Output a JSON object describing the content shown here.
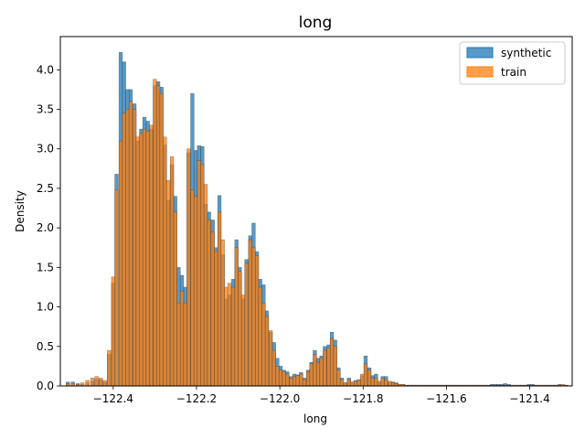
{
  "chart_data": {
    "type": "bar",
    "title": "long",
    "xlabel": "long",
    "ylabel": "Density",
    "xlim": [
      -122.527,
      -121.298
    ],
    "ylim": [
      0,
      4.42
    ],
    "xticks": [
      -122.4,
      -122.2,
      -122.0,
      -121.8,
      -121.6,
      -121.4
    ],
    "xtick_labels": [
      "−122.4",
      "−122.2",
      "−122.0",
      "−121.8",
      "−121.6",
      "−121.4"
    ],
    "yticks": [
      0.0,
      0.5,
      1.0,
      1.5,
      2.0,
      2.5,
      3.0,
      3.5,
      4.0
    ],
    "ytick_labels": [
      "0.0",
      "0.5",
      "1.0",
      "1.5",
      "2.0",
      "2.5",
      "3.0",
      "3.5",
      "4.0"
    ],
    "legend": {
      "placement": "top-right",
      "entries": [
        "synthetic",
        "train"
      ]
    },
    "grid": false,
    "series": [
      {
        "name": "synthetic",
        "color": "#1f77b4",
        "bins": [
          [
            -122.509,
            0.05
          ],
          [
            -122.497,
            0.05
          ],
          [
            -122.485,
            0.03
          ],
          [
            -122.474,
            0.02
          ],
          [
            -122.462,
            0.04
          ],
          [
            -122.45,
            0.06
          ],
          [
            -122.44,
            0.09
          ],
          [
            -122.43,
            0.08
          ],
          [
            -122.42,
            0.05
          ],
          [
            -122.41,
            0.4
          ],
          [
            -122.4,
            1.3
          ],
          [
            -122.392,
            2.68
          ],
          [
            -122.382,
            4.22
          ],
          [
            -122.374,
            4.1
          ],
          [
            -122.366,
            3.75
          ],
          [
            -122.358,
            3.75
          ],
          [
            -122.349,
            3.57
          ],
          [
            -122.341,
            3.1
          ],
          [
            -122.333,
            3.25
          ],
          [
            -122.325,
            3.4
          ],
          [
            -122.317,
            3.35
          ],
          [
            -122.309,
            3.25
          ],
          [
            -122.3,
            3.8
          ],
          [
            -122.292,
            3.85
          ],
          [
            -122.284,
            3.78
          ],
          [
            -122.276,
            3.05
          ],
          [
            -122.268,
            2.35
          ],
          [
            -122.259,
            2.8
          ],
          [
            -122.251,
            2.4
          ],
          [
            -122.243,
            1.5
          ],
          [
            -122.235,
            1.4
          ],
          [
            -122.227,
            1.25
          ],
          [
            -122.219,
            2.95
          ],
          [
            -122.21,
            3.7
          ],
          [
            -122.202,
            2.98
          ],
          [
            -122.194,
            3.04
          ],
          [
            -122.186,
            3.03
          ],
          [
            -122.178,
            2.3
          ],
          [
            -122.17,
            2.2
          ],
          [
            -122.161,
            2.1
          ],
          [
            -122.153,
            1.75
          ],
          [
            -122.145,
            2.41
          ],
          [
            -122.137,
            1.66
          ],
          [
            -122.129,
            1.1
          ],
          [
            -122.121,
            1.15
          ],
          [
            -122.112,
            1.35
          ],
          [
            -122.104,
            1.85
          ],
          [
            -122.096,
            1.5
          ],
          [
            -122.088,
            1.1
          ],
          [
            -122.08,
            1.6
          ],
          [
            -122.071,
            1.9
          ],
          [
            -122.063,
            2.06
          ],
          [
            -122.055,
            1.7
          ],
          [
            -122.047,
            1.35
          ],
          [
            -122.039,
            1.28
          ],
          [
            -122.031,
            0.95
          ],
          [
            -122.022,
            0.68
          ],
          [
            -122.014,
            0.55
          ],
          [
            -122.006,
            0.35
          ],
          [
            -121.998,
            0.25
          ],
          [
            -121.99,
            0.2
          ],
          [
            -121.982,
            0.18
          ],
          [
            -121.973,
            0.12
          ],
          [
            -121.965,
            0.15
          ],
          [
            -121.957,
            0.14
          ],
          [
            -121.949,
            0.17
          ],
          [
            -121.941,
            0.1
          ],
          [
            -121.932,
            0.2
          ],
          [
            -121.924,
            0.3
          ],
          [
            -121.916,
            0.45
          ],
          [
            -121.908,
            0.35
          ],
          [
            -121.9,
            0.38
          ],
          [
            -121.892,
            0.5
          ],
          [
            -121.883,
            0.52
          ],
          [
            -121.875,
            0.68
          ],
          [
            -121.867,
            0.58
          ],
          [
            -121.859,
            0.23
          ],
          [
            -121.851,
            0.1
          ],
          [
            -121.843,
            0.04
          ],
          [
            -121.834,
            0.1
          ],
          [
            -121.826,
            0.05
          ],
          [
            -121.818,
            0.07
          ],
          [
            -121.81,
            0.08
          ],
          [
            -121.802,
            0.13
          ],
          [
            -121.794,
            0.38
          ],
          [
            -121.785,
            0.23
          ],
          [
            -121.777,
            0.13
          ],
          [
            -121.769,
            0.15
          ],
          [
            -121.761,
            0.05
          ],
          [
            -121.753,
            0.12
          ],
          [
            -121.745,
            0.12
          ],
          [
            -121.736,
            0.05
          ],
          [
            -121.728,
            0.05
          ],
          [
            -121.72,
            0.04
          ],
          [
            -121.712,
            0.02
          ],
          [
            -121.704,
            0.02
          ],
          [
            -121.695,
            0.01
          ],
          [
            -121.687,
            0.01
          ],
          [
            -121.679,
            0.01
          ],
          [
            -121.671,
            0.01
          ],
          [
            -121.663,
            0.01
          ],
          [
            -121.655,
            0.01
          ],
          [
            -121.646,
            0.01
          ],
          [
            -121.638,
            0.01
          ],
          [
            -121.63,
            0.01
          ],
          [
            -121.622,
            0.01
          ],
          [
            -121.614,
            0.01
          ],
          [
            -121.605,
            0.01
          ],
          [
            -121.597,
            0.01
          ],
          [
            -121.589,
            0.01
          ],
          [
            -121.581,
            0.01
          ],
          [
            -121.573,
            0.01
          ],
          [
            -121.565,
            0.01
          ],
          [
            -121.556,
            0.01
          ],
          [
            -121.548,
            0.01
          ],
          [
            -121.54,
            0.01
          ],
          [
            -121.532,
            0.01
          ],
          [
            -121.524,
            0.01
          ],
          [
            -121.516,
            0.01
          ],
          [
            -121.508,
            0.01
          ],
          [
            -121.499,
            0.01
          ],
          [
            -121.491,
            0.02
          ],
          [
            -121.483,
            0.02
          ],
          [
            -121.475,
            0.02
          ],
          [
            -121.467,
            0.02
          ],
          [
            -121.459,
            0.03
          ],
          [
            -121.45,
            0.02
          ],
          [
            -121.442,
            0.01
          ],
          [
            -121.434,
            0.01
          ],
          [
            -121.426,
            0.01
          ],
          [
            -121.418,
            0.01
          ],
          [
            -121.41,
            0.01
          ],
          [
            -121.402,
            0.02
          ],
          [
            -121.393,
            0.02
          ],
          [
            -121.385,
            0.01
          ],
          [
            -121.377,
            0.01
          ],
          [
            -121.369,
            0.01
          ],
          [
            -121.361,
            0.01
          ],
          [
            -121.353,
            0.01
          ],
          [
            -121.344,
            0.01
          ],
          [
            -121.336,
            0.01
          ],
          [
            -121.328,
            0.02
          ],
          [
            -121.32,
            0.01
          ],
          [
            -121.312,
            0.01
          ]
        ]
      },
      {
        "name": "train",
        "color": "#ff7f0e",
        "bins": [
          [
            -122.509,
            0.03
          ],
          [
            -122.497,
            0.03
          ],
          [
            -122.485,
            0.02
          ],
          [
            -122.474,
            0.04
          ],
          [
            -122.462,
            0.07
          ],
          [
            -122.45,
            0.1
          ],
          [
            -122.44,
            0.12
          ],
          [
            -122.43,
            0.1
          ],
          [
            -122.42,
            0.07
          ],
          [
            -122.41,
            0.45
          ],
          [
            -122.4,
            1.38
          ],
          [
            -122.392,
            2.48
          ],
          [
            -122.382,
            3.1
          ],
          [
            -122.374,
            3.45
          ],
          [
            -122.366,
            3.5
          ],
          [
            -122.358,
            3.6
          ],
          [
            -122.349,
            3.5
          ],
          [
            -122.341,
            3.15
          ],
          [
            -122.333,
            3.2
          ],
          [
            -122.325,
            3.25
          ],
          [
            -122.317,
            3.22
          ],
          [
            -122.309,
            3.3
          ],
          [
            -122.3,
            3.88
          ],
          [
            -122.292,
            3.8
          ],
          [
            -122.284,
            3.7
          ],
          [
            -122.276,
            3.15
          ],
          [
            -122.268,
            2.6
          ],
          [
            -122.259,
            2.9
          ],
          [
            -122.251,
            2.2
          ],
          [
            -122.243,
            1.05
          ],
          [
            -122.235,
            1.2
          ],
          [
            -122.227,
            1.05
          ],
          [
            -122.219,
            3.0
          ],
          [
            -122.21,
            2.48
          ],
          [
            -122.202,
            2.4
          ],
          [
            -122.194,
            2.85
          ],
          [
            -122.186,
            2.8
          ],
          [
            -122.178,
            2.55
          ],
          [
            -122.17,
            2.1
          ],
          [
            -122.161,
            1.95
          ],
          [
            -122.153,
            1.7
          ],
          [
            -122.145,
            2.2
          ],
          [
            -122.137,
            1.85
          ],
          [
            -122.129,
            1.25
          ],
          [
            -122.121,
            1.3
          ],
          [
            -122.112,
            1.25
          ],
          [
            -122.104,
            1.75
          ],
          [
            -122.096,
            1.45
          ],
          [
            -122.088,
            1.15
          ],
          [
            -122.08,
            1.55
          ],
          [
            -122.071,
            1.85
          ],
          [
            -122.063,
            1.75
          ],
          [
            -122.055,
            1.65
          ],
          [
            -122.047,
            1.25
          ],
          [
            -122.039,
            1.05
          ],
          [
            -122.031,
            0.88
          ],
          [
            -122.022,
            0.7
          ],
          [
            -122.014,
            0.45
          ],
          [
            -122.006,
            0.25
          ],
          [
            -121.998,
            0.2
          ],
          [
            -121.99,
            0.18
          ],
          [
            -121.982,
            0.15
          ],
          [
            -121.973,
            0.1
          ],
          [
            -121.965,
            0.12
          ],
          [
            -121.957,
            0.13
          ],
          [
            -121.949,
            0.15
          ],
          [
            -121.941,
            0.08
          ],
          [
            -121.932,
            0.18
          ],
          [
            -121.924,
            0.28
          ],
          [
            -121.916,
            0.4
          ],
          [
            -121.908,
            0.3
          ],
          [
            -121.9,
            0.35
          ],
          [
            -121.892,
            0.45
          ],
          [
            -121.883,
            0.48
          ],
          [
            -121.875,
            0.6
          ],
          [
            -121.867,
            0.5
          ],
          [
            -121.859,
            0.2
          ],
          [
            -121.851,
            0.08
          ],
          [
            -121.843,
            0.04
          ],
          [
            -121.834,
            0.08
          ],
          [
            -121.826,
            0.05
          ],
          [
            -121.818,
            0.06
          ],
          [
            -121.81,
            0.07
          ],
          [
            -121.802,
            0.15
          ],
          [
            -121.794,
            0.28
          ],
          [
            -121.785,
            0.2
          ],
          [
            -121.777,
            0.1
          ],
          [
            -121.769,
            0.1
          ],
          [
            -121.761,
            0.06
          ],
          [
            -121.753,
            0.1
          ],
          [
            -121.745,
            0.08
          ],
          [
            -121.736,
            0.06
          ],
          [
            -121.728,
            0.04
          ],
          [
            -121.72,
            0.03
          ],
          [
            -121.712,
            0.02
          ],
          [
            -121.704,
            0.02
          ],
          [
            -121.695,
            0.01
          ],
          [
            -121.687,
            0.01
          ],
          [
            -121.679,
            0.01
          ],
          [
            -121.671,
            0.01
          ],
          [
            -121.663,
            0.01
          ],
          [
            -121.655,
            0.01
          ],
          [
            -121.646,
            0.01
          ],
          [
            -121.638,
            0.01
          ],
          [
            -121.63,
            0.01
          ],
          [
            -121.622,
            0.01
          ],
          [
            -121.614,
            0.01
          ],
          [
            -121.605,
            0.01
          ],
          [
            -121.597,
            0.01
          ],
          [
            -121.589,
            0.01
          ],
          [
            -121.581,
            0.01
          ],
          [
            -121.573,
            0.01
          ],
          [
            -121.565,
            0.01
          ],
          [
            -121.556,
            0.01
          ],
          [
            -121.548,
            0.01
          ],
          [
            -121.54,
            0.01
          ],
          [
            -121.532,
            0.01
          ],
          [
            -121.524,
            0.01
          ],
          [
            -121.516,
            0.01
          ],
          [
            -121.508,
            0.01
          ],
          [
            -121.499,
            0.01
          ],
          [
            -121.491,
            0.01
          ],
          [
            -121.483,
            0.01
          ],
          [
            -121.475,
            0.01
          ],
          [
            -121.467,
            0.01
          ],
          [
            -121.459,
            0.01
          ],
          [
            -121.45,
            0.01
          ],
          [
            -121.442,
            0.01
          ],
          [
            -121.434,
            0.01
          ],
          [
            -121.426,
            0.01
          ],
          [
            -121.418,
            0.01
          ],
          [
            -121.41,
            0.01
          ],
          [
            -121.402,
            0.01
          ],
          [
            -121.393,
            0.01
          ],
          [
            -121.385,
            0.01
          ],
          [
            -121.377,
            0.01
          ],
          [
            -121.369,
            0.01
          ],
          [
            -121.361,
            0.01
          ],
          [
            -121.353,
            0.01
          ],
          [
            -121.344,
            0.01
          ],
          [
            -121.336,
            0.01
          ],
          [
            -121.328,
            0.01
          ],
          [
            -121.32,
            0.02
          ],
          [
            -121.312,
            0.01
          ]
        ]
      }
    ]
  }
}
